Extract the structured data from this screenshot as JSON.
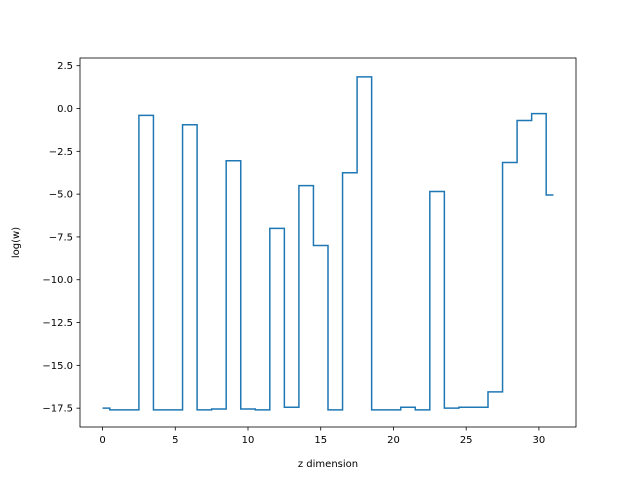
{
  "chart_data": {
    "type": "line",
    "drawstyle": "steps-mid",
    "title": "",
    "xlabel": "z dimension",
    "ylabel": "log(w)",
    "xlim": [
      -1.55,
      32.55
    ],
    "ylim": [
      -18.6,
      2.95
    ],
    "xticks": [
      0,
      5,
      10,
      15,
      20,
      25,
      30
    ],
    "xtick_labels": [
      "0",
      "5",
      "10",
      "15",
      "20",
      "25",
      "30"
    ],
    "yticks": [
      2.5,
      0.0,
      -2.5,
      -5.0,
      -7.5,
      -10.0,
      -12.5,
      -15.0,
      -17.5
    ],
    "ytick_labels": [
      "2.5",
      "0.0",
      "−2.5",
      "−5.0",
      "−7.5",
      "−10.0",
      "−12.5",
      "−15.0",
      "−17.5"
    ],
    "grid": false,
    "series": [
      {
        "color": "#1f77b4",
        "x": [
          0,
          1,
          2,
          3,
          4,
          5,
          6,
          7,
          8,
          9,
          10,
          11,
          12,
          13,
          14,
          15,
          16,
          17,
          18,
          19,
          20,
          21,
          22,
          23,
          24,
          25,
          26,
          27,
          28,
          29,
          30,
          31
        ],
        "y": [
          -17.5,
          -17.6,
          -17.6,
          -0.4,
          -17.6,
          -17.6,
          -0.95,
          -17.6,
          -17.55,
          -3.05,
          -17.55,
          -17.6,
          -7.0,
          -17.45,
          -4.5,
          -8.0,
          -17.6,
          -3.75,
          1.85,
          -17.6,
          -17.6,
          -17.45,
          -17.6,
          -4.85,
          -17.5,
          -17.45,
          -17.45,
          -16.55,
          -3.15,
          -0.7,
          -0.3,
          -5.05
        ]
      }
    ]
  }
}
